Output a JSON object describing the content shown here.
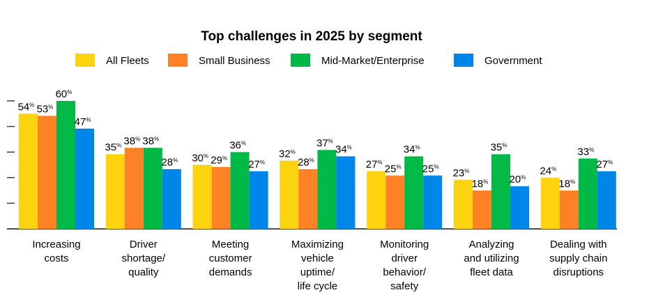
{
  "chart_data": {
    "type": "bar",
    "title": "Top challenges in 2025 by segment",
    "xlabel": "",
    "ylabel": "",
    "ylim": [
      0,
      60
    ],
    "y_ticks": [
      12,
      24,
      36,
      48,
      60
    ],
    "y_tick_labels_shown": false,
    "grid": false,
    "legend_placement": "top",
    "value_suffix": "%",
    "categories": [
      [
        "Increasing",
        "costs"
      ],
      [
        "Driver",
        "shortage/",
        "quality"
      ],
      [
        "Meeting",
        "customer",
        "demands"
      ],
      [
        "Maximizing",
        "vehicle",
        "uptime/",
        "life cycle"
      ],
      [
        "Monitoring",
        "driver",
        "behavior/",
        "safety"
      ],
      [
        "Analyzing",
        "and utilizing",
        "fleet data"
      ],
      [
        "Dealing with",
        "supply chain",
        "disruptions"
      ]
    ],
    "series": [
      {
        "name": "All Fleets",
        "color": "#FDD20E",
        "values": [
          54,
          35,
          30,
          32,
          27,
          23,
          24
        ]
      },
      {
        "name": "Small Business",
        "color": "#FF8126",
        "values": [
          53,
          38,
          29,
          28,
          25,
          18,
          18
        ]
      },
      {
        "name": "Mid-Market/Enterprise",
        "color": "#00B946",
        "values": [
          60,
          38,
          36,
          37,
          34,
          35,
          33
        ]
      },
      {
        "name": "Government",
        "color": "#0086E8",
        "values": [
          47,
          28,
          27,
          34,
          25,
          20,
          27
        ]
      }
    ]
  }
}
